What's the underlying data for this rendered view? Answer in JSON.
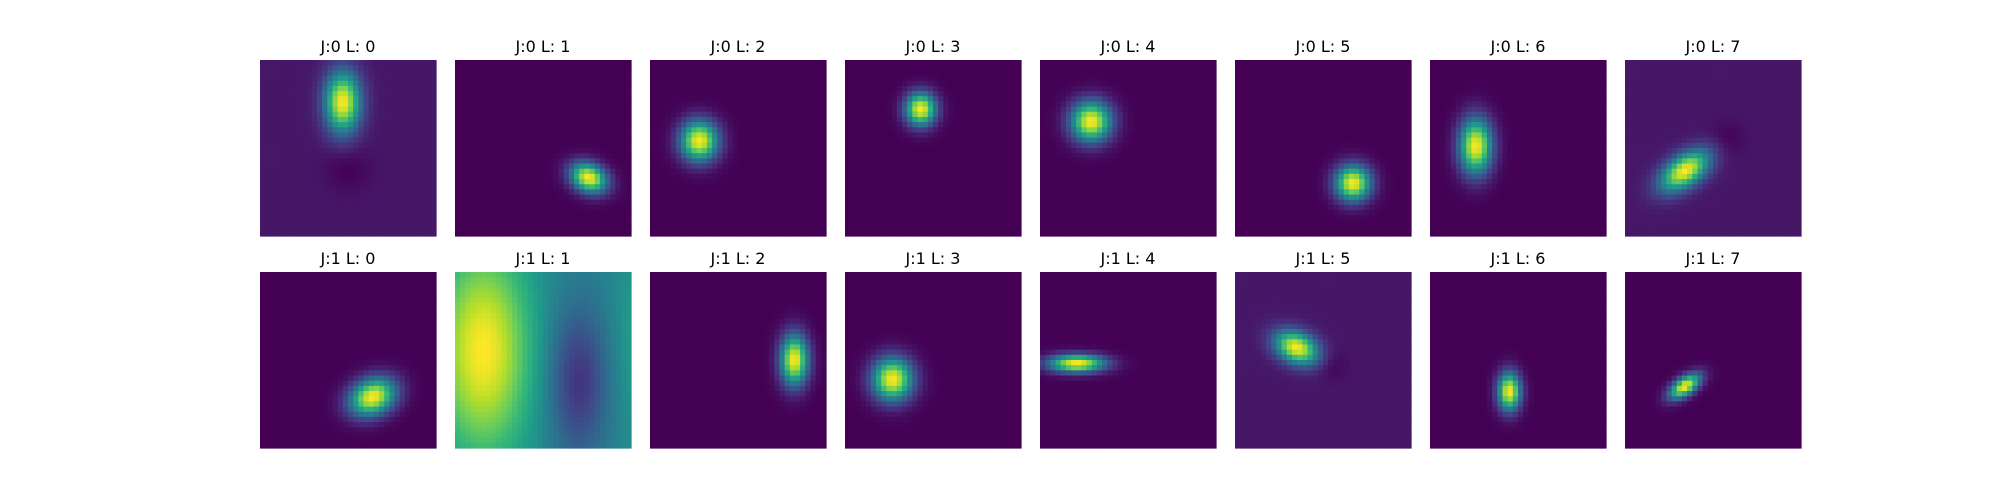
{
  "chart_data": {
    "type": "heatmap",
    "colormap": "viridis",
    "colormap_stops": [
      "#440154",
      "#482878",
      "#3e4989",
      "#31688e",
      "#26828e",
      "#1f9e89",
      "#35b779",
      "#6ece58",
      "#b5de2b",
      "#fde725"
    ],
    "grid": false,
    "rows": 2,
    "cols": 8,
    "panels": [
      {
        "title": "J:0 L: 0",
        "background": 0.06,
        "blobs": [
          {
            "cx": 0.47,
            "cy": 0.24,
            "sx": 0.07,
            "sy": 0.12,
            "rot": 0,
            "amp": 0.94
          },
          {
            "cx": 0.5,
            "cy": 0.62,
            "sx": 0.09,
            "sy": 0.09,
            "rot": 0,
            "amp": -0.06
          }
        ]
      },
      {
        "title": "J:0 L: 1",
        "background": 0.0,
        "blobs": [
          {
            "cx": 0.76,
            "cy": 0.67,
            "sx": 0.075,
            "sy": 0.055,
            "rot": 25,
            "amp": 1.0
          }
        ]
      },
      {
        "title": "J:0 L: 2",
        "background": 0.0,
        "blobs": [
          {
            "cx": 0.28,
            "cy": 0.46,
            "sx": 0.075,
            "sy": 0.08,
            "rot": 0,
            "amp": 1.0
          }
        ]
      },
      {
        "title": "J:0 L: 3",
        "background": 0.0,
        "blobs": [
          {
            "cx": 0.43,
            "cy": 0.28,
            "sx": 0.06,
            "sy": 0.065,
            "rot": 0,
            "amp": 1.0
          }
        ]
      },
      {
        "title": "J:0 L: 4",
        "background": 0.0,
        "blobs": [
          {
            "cx": 0.29,
            "cy": 0.35,
            "sx": 0.08,
            "sy": 0.08,
            "rot": 0,
            "amp": 1.0
          }
        ]
      },
      {
        "title": "J:0 L: 5",
        "background": 0.0,
        "blobs": [
          {
            "cx": 0.67,
            "cy": 0.7,
            "sx": 0.07,
            "sy": 0.07,
            "rot": 0,
            "amp": 1.0
          }
        ]
      },
      {
        "title": "J:0 L: 6",
        "background": 0.0,
        "blobs": [
          {
            "cx": 0.26,
            "cy": 0.49,
            "sx": 0.065,
            "sy": 0.11,
            "rot": 0,
            "amp": 1.0
          }
        ]
      },
      {
        "title": "J:0 L: 7",
        "background": 0.06,
        "blobs": [
          {
            "cx": 0.34,
            "cy": 0.63,
            "sx": 0.11,
            "sy": 0.06,
            "rot": -35,
            "amp": 0.94
          },
          {
            "cx": 0.58,
            "cy": 0.45,
            "sx": 0.07,
            "sy": 0.07,
            "rot": 0,
            "amp": -0.06
          }
        ]
      },
      {
        "title": "J:1 L: 0",
        "background": 0.0,
        "blobs": [
          {
            "cx": 0.64,
            "cy": 0.71,
            "sx": 0.095,
            "sy": 0.07,
            "rot": -25,
            "amp": 1.0
          }
        ]
      },
      {
        "title": "J:1 L: 1",
        "background": 0.45,
        "blobs": [
          {
            "cx": 0.16,
            "cy": 0.45,
            "sx": 0.19,
            "sy": 0.42,
            "rot": 0,
            "amp": 0.55
          },
          {
            "cx": 0.7,
            "cy": 0.62,
            "sx": 0.12,
            "sy": 0.3,
            "rot": 0,
            "amp": -0.3
          },
          {
            "cx": 1.02,
            "cy": 0.4,
            "sx": 0.09,
            "sy": 0.4,
            "rot": 0,
            "amp": 0.1
          }
        ]
      },
      {
        "title": "J:1 L: 2",
        "background": 0.0,
        "blobs": [
          {
            "cx": 0.82,
            "cy": 0.5,
            "sx": 0.055,
            "sy": 0.1,
            "rot": 0,
            "amp": 1.0
          }
        ]
      },
      {
        "title": "J:1 L: 3",
        "background": 0.0,
        "blobs": [
          {
            "cx": 0.27,
            "cy": 0.61,
            "sx": 0.08,
            "sy": 0.085,
            "rot": 0,
            "amp": 1.0
          }
        ]
      },
      {
        "title": "J:1 L: 4",
        "background": 0.0,
        "blobs": [
          {
            "cx": 0.21,
            "cy": 0.52,
            "sx": 0.11,
            "sy": 0.035,
            "rot": 0,
            "amp": 1.0
          }
        ]
      },
      {
        "title": "J:1 L: 5",
        "background": 0.06,
        "blobs": [
          {
            "cx": 0.35,
            "cy": 0.43,
            "sx": 0.09,
            "sy": 0.06,
            "rot": 25,
            "amp": 0.94
          },
          {
            "cx": 0.55,
            "cy": 0.53,
            "sx": 0.06,
            "sy": 0.06,
            "rot": 0,
            "amp": -0.06
          }
        ]
      },
      {
        "title": "J:1 L: 6",
        "background": 0.0,
        "blobs": [
          {
            "cx": 0.45,
            "cy": 0.68,
            "sx": 0.045,
            "sy": 0.075,
            "rot": 0,
            "amp": 1.0
          }
        ]
      },
      {
        "title": "J:1 L: 7",
        "background": 0.0,
        "blobs": [
          {
            "cx": 0.34,
            "cy": 0.65,
            "sx": 0.07,
            "sy": 0.035,
            "rot": -35,
            "amp": 1.0
          }
        ]
      }
    ]
  }
}
